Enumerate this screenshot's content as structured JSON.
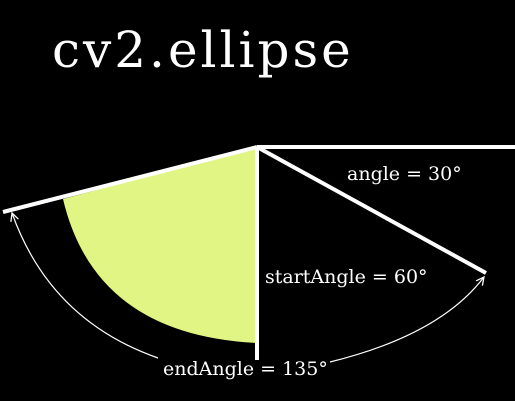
{
  "title": "cv2.ellipse",
  "labels": {
    "angle": "angle = 30°",
    "start_angle": "startAngle = 60°",
    "end_angle": "endAngle = 135°"
  },
  "colors": {
    "background": "#000000",
    "lines": "#ffffff",
    "fill": "#e0f584"
  }
}
